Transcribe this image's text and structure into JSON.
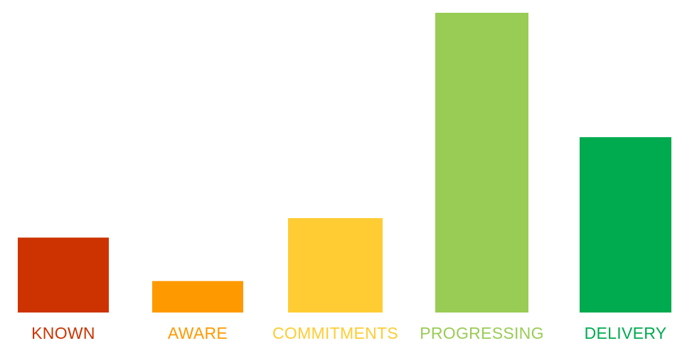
{
  "chart_data": {
    "type": "bar",
    "title": "",
    "xlabel": "",
    "ylabel": "",
    "categories": [
      "KNOWN",
      "AWARE",
      "COMMITMENTS",
      "PROGRESSING",
      "DELIVERY"
    ],
    "values": [
      25,
      10.5,
      31.5,
      100,
      58.5
    ],
    "ylim": [
      0,
      100
    ],
    "colors": [
      "#cc3300",
      "#ff9900",
      "#ffcc33",
      "#99cc55",
      "#00aa4f"
    ],
    "grid": false,
    "legend": "none"
  }
}
